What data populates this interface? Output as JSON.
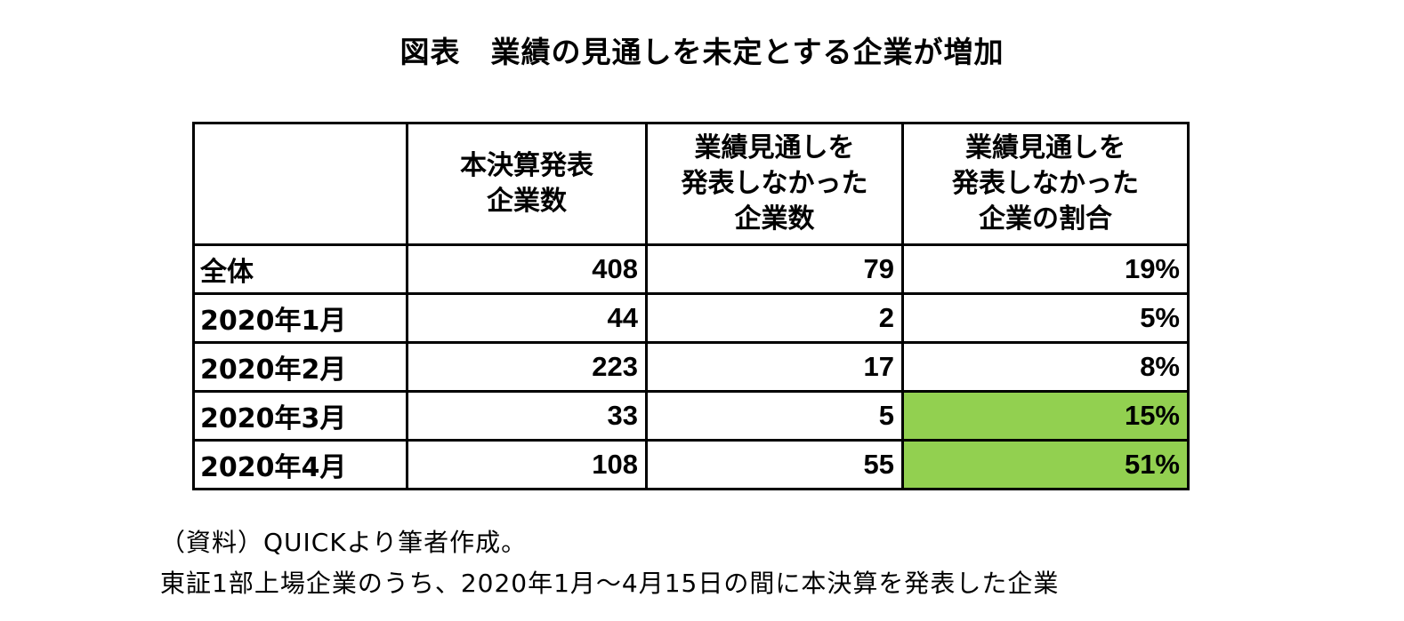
{
  "title": "図表　業績の見通しを未定とする企業が増加",
  "table": {
    "headers": [
      {
        "lines": []
      },
      {
        "lines": [
          "本決算発表",
          "企業数"
        ]
      },
      {
        "lines": [
          "業績見通しを",
          "発表しなかった",
          "企業数"
        ]
      },
      {
        "lines": [
          "業績見通しを",
          "発表しなかった",
          "企業の割合"
        ]
      }
    ],
    "rows": [
      {
        "label": "全体",
        "announced": "408",
        "no_forecast": "79",
        "ratio": "19%",
        "highlight": false
      },
      {
        "label": "2020年1月",
        "announced": "44",
        "no_forecast": "2",
        "ratio": "5%",
        "highlight": false
      },
      {
        "label": "2020年2月",
        "announced": "223",
        "no_forecast": "17",
        "ratio": "8%",
        "highlight": false
      },
      {
        "label": "2020年3月",
        "announced": "33",
        "no_forecast": "5",
        "ratio": "15%",
        "highlight": true
      },
      {
        "label": "2020年4月",
        "announced": "108",
        "no_forecast": "55",
        "ratio": "51%",
        "highlight": true
      }
    ],
    "highlight_color": "#92d050"
  },
  "notes": {
    "source": "（資料）QUICKより筆者作成。",
    "scope": "東証1部上場企業のうち、2020年1月～4月15日の間に本決算を発表した企業"
  }
}
